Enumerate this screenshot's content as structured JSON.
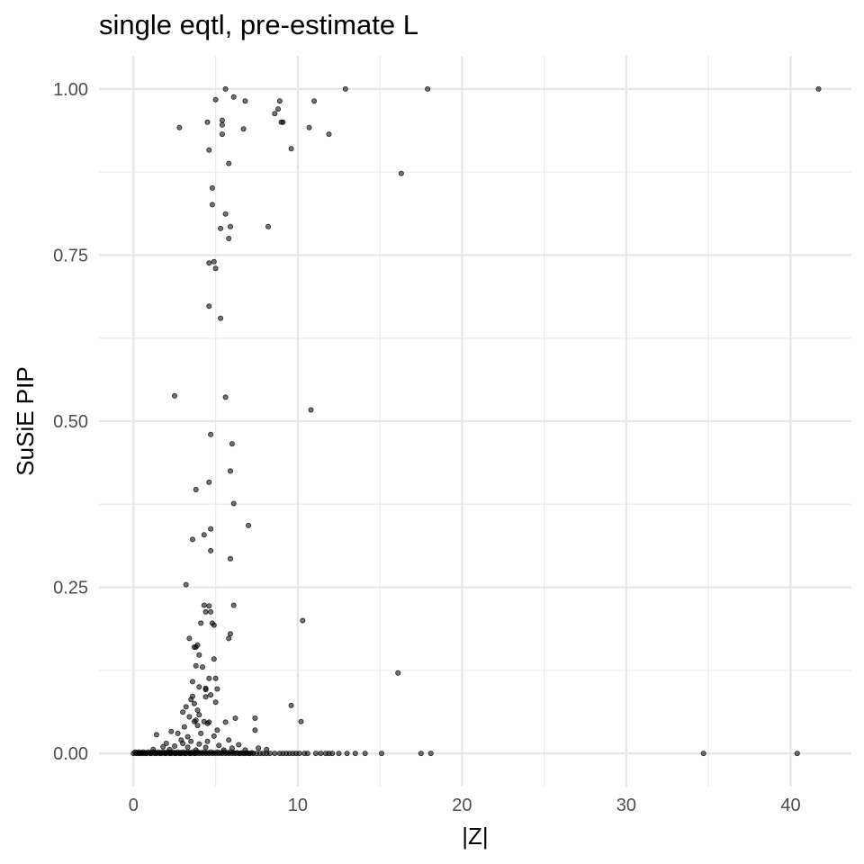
{
  "chart_data": {
    "type": "scatter",
    "title": "single eqtl, pre-estimate L",
    "xlabel": "|Z|",
    "ylabel": "SuSiE PIP",
    "xlim": [
      -2.1,
      43.7
    ],
    "ylim": [
      -0.05,
      1.05
    ],
    "x_ticks": [
      0,
      10,
      20,
      30,
      40
    ],
    "y_ticks": [
      0.0,
      0.25,
      0.5,
      0.75,
      1.0
    ],
    "x_tick_labels": [
      "0",
      "10",
      "20",
      "30",
      "40"
    ],
    "y_tick_labels": [
      "0.00",
      "0.25",
      "0.50",
      "0.75",
      "1.00"
    ],
    "grid": true,
    "point_color": "#000000",
    "point_alpha": 0.55,
    "points": [
      [
        5.6,
        1.0
      ],
      [
        12.9,
        1.0
      ],
      [
        17.9,
        1.0
      ],
      [
        41.7,
        1.0
      ],
      [
        6.1,
        0.988
      ],
      [
        5.0,
        0.984
      ],
      [
        6.8,
        0.982
      ],
      [
        8.9,
        0.982
      ],
      [
        11.0,
        0.982
      ],
      [
        8.8,
        0.97
      ],
      [
        8.6,
        0.963
      ],
      [
        5.4,
        0.953
      ],
      [
        4.5,
        0.95
      ],
      [
        5.4,
        0.946
      ],
      [
        9.0,
        0.95
      ],
      [
        9.1,
        0.95
      ],
      [
        2.8,
        0.942
      ],
      [
        6.7,
        0.94
      ],
      [
        10.7,
        0.942
      ],
      [
        5.4,
        0.932
      ],
      [
        11.9,
        0.932
      ],
      [
        4.6,
        0.908
      ],
      [
        9.6,
        0.91
      ],
      [
        5.8,
        0.888
      ],
      [
        16.3,
        0.873
      ],
      [
        4.8,
        0.851
      ],
      [
        4.8,
        0.826
      ],
      [
        5.6,
        0.812
      ],
      [
        5.3,
        0.79
      ],
      [
        5.9,
        0.793
      ],
      [
        8.2,
        0.793
      ],
      [
        5.8,
        0.775
      ],
      [
        4.6,
        0.738
      ],
      [
        4.9,
        0.74
      ],
      [
        5.0,
        0.73
      ],
      [
        4.6,
        0.673
      ],
      [
        5.3,
        0.655
      ],
      [
        2.5,
        0.538
      ],
      [
        5.6,
        0.536
      ],
      [
        10.8,
        0.517
      ],
      [
        4.7,
        0.48
      ],
      [
        6.0,
        0.466
      ],
      [
        5.9,
        0.425
      ],
      [
        4.6,
        0.408
      ],
      [
        3.8,
        0.397
      ],
      [
        6.1,
        0.376
      ],
      [
        7.0,
        0.343
      ],
      [
        4.7,
        0.338
      ],
      [
        4.3,
        0.329
      ],
      [
        3.6,
        0.322
      ],
      [
        4.7,
        0.305
      ],
      [
        5.9,
        0.293
      ],
      [
        3.2,
        0.254
      ],
      [
        6.1,
        0.223
      ],
      [
        4.3,
        0.223
      ],
      [
        4.6,
        0.222
      ],
      [
        4.7,
        0.213
      ],
      [
        4.4,
        0.213
      ],
      [
        10.3,
        0.2
      ],
      [
        4.1,
        0.196
      ],
      [
        4.8,
        0.196
      ],
      [
        4.9,
        0.193
      ],
      [
        5.9,
        0.18
      ],
      [
        5.8,
        0.173
      ],
      [
        3.4,
        0.173
      ],
      [
        3.9,
        0.163
      ],
      [
        3.8,
        0.16
      ],
      [
        3.7,
        0.16
      ],
      [
        4.0,
        0.148
      ],
      [
        4.9,
        0.142
      ],
      [
        3.8,
        0.132
      ],
      [
        4.2,
        0.13
      ],
      [
        16.1,
        0.121
      ],
      [
        4.6,
        0.113
      ],
      [
        5.0,
        0.113
      ],
      [
        3.6,
        0.108
      ],
      [
        4.0,
        0.1
      ],
      [
        4.4,
        0.098
      ],
      [
        4.4,
        0.096
      ],
      [
        5.1,
        0.097
      ],
      [
        3.6,
        0.086
      ],
      [
        4.7,
        0.088
      ],
      [
        4.4,
        0.085
      ],
      [
        3.5,
        0.081
      ],
      [
        5.0,
        0.077
      ],
      [
        3.7,
        0.075
      ],
      [
        9.6,
        0.072
      ],
      [
        3.2,
        0.07
      ],
      [
        3.9,
        0.065
      ],
      [
        3.0,
        0.062
      ],
      [
        4.0,
        0.058
      ],
      [
        3.4,
        0.055
      ],
      [
        6.2,
        0.053
      ],
      [
        7.4,
        0.053
      ],
      [
        3.8,
        0.05
      ],
      [
        3.7,
        0.048
      ],
      [
        4.3,
        0.048
      ],
      [
        10.2,
        0.048
      ],
      [
        4.5,
        0.045
      ],
      [
        4.6,
        0.047
      ],
      [
        5.6,
        0.047
      ],
      [
        3.1,
        0.04
      ],
      [
        3.9,
        0.042
      ],
      [
        2.3,
        0.033
      ],
      [
        2.7,
        0.03
      ],
      [
        1.4,
        0.028
      ],
      [
        4.1,
        0.03
      ],
      [
        5.1,
        0.035
      ],
      [
        7.4,
        0.035
      ],
      [
        3.3,
        0.025
      ],
      [
        4.9,
        0.026
      ],
      [
        2.9,
        0.02
      ],
      [
        3.5,
        0.018
      ],
      [
        4.5,
        0.018
      ],
      [
        5.8,
        0.02
      ],
      [
        2.0,
        0.015
      ],
      [
        3.0,
        0.015
      ],
      [
        4.0,
        0.014
      ],
      [
        5.2,
        0.012
      ],
      [
        6.4,
        0.013
      ],
      [
        1.8,
        0.01
      ],
      [
        2.5,
        0.011
      ],
      [
        3.3,
        0.009
      ],
      [
        4.4,
        0.009
      ],
      [
        6.0,
        0.008
      ],
      [
        7.6,
        0.008
      ],
      [
        1.2,
        0.006
      ],
      [
        2.2,
        0.006
      ],
      [
        3.8,
        0.005
      ],
      [
        5.5,
        0.005
      ],
      [
        6.8,
        0.005
      ],
      [
        8.1,
        0.006
      ],
      [
        0.0,
        0.0
      ],
      [
        0.1,
        0.002
      ],
      [
        0.15,
        0.0
      ],
      [
        0.2,
        0.001
      ],
      [
        0.3,
        0.0
      ],
      [
        0.35,
        0.002
      ],
      [
        0.4,
        0.0
      ],
      [
        0.5,
        0.001
      ],
      [
        0.55,
        0.0
      ],
      [
        0.6,
        0.002
      ],
      [
        0.7,
        0.0
      ],
      [
        0.75,
        0.001
      ],
      [
        0.8,
        0.0
      ],
      [
        0.9,
        0.002
      ],
      [
        1.0,
        0.0
      ],
      [
        1.05,
        0.001
      ],
      [
        1.1,
        0.0
      ],
      [
        1.2,
        0.002
      ],
      [
        1.3,
        0.0
      ],
      [
        1.35,
        0.001
      ],
      [
        1.4,
        0.0
      ],
      [
        1.5,
        0.002
      ],
      [
        1.6,
        0.0
      ],
      [
        1.65,
        0.001
      ],
      [
        1.7,
        0.0
      ],
      [
        1.8,
        0.002
      ],
      [
        1.9,
        0.0
      ],
      [
        1.95,
        0.001
      ],
      [
        2.0,
        0.0
      ],
      [
        2.1,
        0.002
      ],
      [
        2.2,
        0.0
      ],
      [
        2.25,
        0.001
      ],
      [
        2.3,
        0.0
      ],
      [
        2.4,
        0.002
      ],
      [
        2.5,
        0.0
      ],
      [
        2.55,
        0.001
      ],
      [
        2.6,
        0.0
      ],
      [
        2.7,
        0.002
      ],
      [
        2.8,
        0.0
      ],
      [
        2.85,
        0.001
      ],
      [
        2.9,
        0.0
      ],
      [
        3.0,
        0.002
      ],
      [
        3.1,
        0.0
      ],
      [
        3.15,
        0.001
      ],
      [
        3.2,
        0.0
      ],
      [
        3.3,
        0.002
      ],
      [
        3.4,
        0.0
      ],
      [
        3.45,
        0.001
      ],
      [
        3.5,
        0.0
      ],
      [
        3.6,
        0.002
      ],
      [
        3.7,
        0.0
      ],
      [
        3.75,
        0.001
      ],
      [
        3.8,
        0.0
      ],
      [
        3.9,
        0.002
      ],
      [
        4.0,
        0.0
      ],
      [
        4.1,
        0.001
      ],
      [
        4.2,
        0.0
      ],
      [
        4.3,
        0.002
      ],
      [
        4.4,
        0.0
      ],
      [
        4.5,
        0.001
      ],
      [
        4.6,
        0.0
      ],
      [
        4.7,
        0.002
      ],
      [
        4.8,
        0.0
      ],
      [
        4.9,
        0.001
      ],
      [
        5.0,
        0.0
      ],
      [
        5.1,
        0.002
      ],
      [
        5.2,
        0.0
      ],
      [
        5.3,
        0.001
      ],
      [
        5.4,
        0.0
      ],
      [
        5.5,
        0.002
      ],
      [
        5.6,
        0.0
      ],
      [
        5.7,
        0.001
      ],
      [
        5.8,
        0.0
      ],
      [
        5.9,
        0.002
      ],
      [
        6.0,
        0.0
      ],
      [
        6.1,
        0.001
      ],
      [
        6.2,
        0.0
      ],
      [
        6.3,
        0.001
      ],
      [
        6.4,
        0.0
      ],
      [
        6.5,
        0.0
      ],
      [
        6.6,
        0.001
      ],
      [
        6.7,
        0.0
      ],
      [
        6.8,
        0.0
      ],
      [
        6.9,
        0.001
      ],
      [
        7.0,
        0.0
      ],
      [
        7.1,
        0.0
      ],
      [
        7.2,
        0.001
      ],
      [
        7.3,
        0.0
      ],
      [
        7.5,
        0.0
      ],
      [
        7.7,
        0.0
      ],
      [
        7.9,
        0.0
      ],
      [
        8.1,
        0.0
      ],
      [
        8.3,
        0.0
      ],
      [
        8.6,
        0.0
      ],
      [
        8.9,
        0.0
      ],
      [
        9.1,
        0.0
      ],
      [
        9.3,
        0.0
      ],
      [
        9.5,
        0.0
      ],
      [
        9.7,
        0.0
      ],
      [
        9.9,
        0.0
      ],
      [
        10.1,
        0.0
      ],
      [
        10.4,
        0.0
      ],
      [
        10.6,
        0.0
      ],
      [
        11.1,
        0.0
      ],
      [
        11.4,
        0.0
      ],
      [
        11.7,
        0.0
      ],
      [
        11.9,
        0.0
      ],
      [
        12.1,
        0.0
      ],
      [
        12.5,
        0.0
      ],
      [
        13.0,
        0.0
      ],
      [
        13.5,
        0.0
      ],
      [
        14.1,
        0.0
      ],
      [
        15.1,
        0.0
      ],
      [
        17.5,
        0.0
      ],
      [
        18.1,
        0.0
      ],
      [
        34.7,
        0.0
      ],
      [
        40.4,
        0.0
      ]
    ]
  }
}
